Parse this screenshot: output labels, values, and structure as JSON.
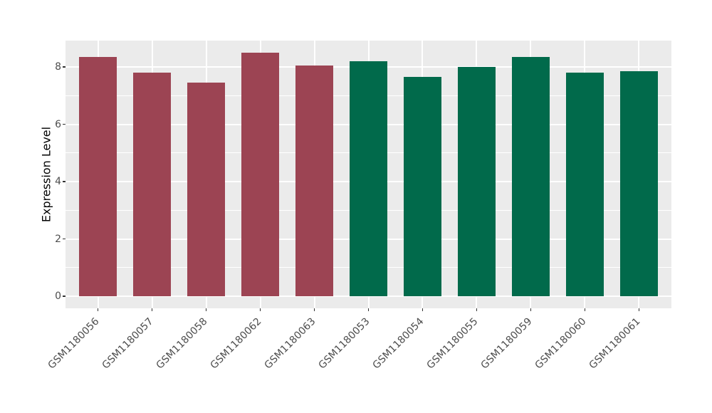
{
  "chart_data": {
    "type": "bar",
    "title": "",
    "xlabel": "",
    "ylabel": "Expression Level",
    "categories": [
      "GSM1180056",
      "GSM1180057",
      "GSM1180058",
      "GSM1180062",
      "GSM1180063",
      "GSM1180053",
      "GSM1180054",
      "GSM1180055",
      "GSM1180059",
      "GSM1180060",
      "GSM1180061"
    ],
    "values": [
      8.35,
      7.8,
      7.45,
      8.5,
      8.05,
      8.2,
      7.65,
      8.0,
      8.35,
      7.8,
      7.85
    ],
    "bar_colors": [
      "#9C4453",
      "#9C4453",
      "#9C4453",
      "#9C4453",
      "#9C4453",
      "#016A4B",
      "#016A4B",
      "#016A4B",
      "#016A4B",
      "#016A4B",
      "#016A4B"
    ],
    "yticks": {
      "values": [
        0,
        2,
        4,
        6,
        8
      ],
      "labels": [
        "0",
        "2",
        "4",
        "6",
        "8"
      ]
    },
    "y_minor_gridlines": [
      1,
      3,
      5,
      7
    ],
    "ylim": [
      -0.42,
      8.92
    ],
    "x_tick_label_rotation_deg": 45,
    "grid": true,
    "legend": false,
    "colors": {
      "figure_background": "#FFFFFF",
      "panel_background": "#EBEBEB",
      "gridline": "#FFFFFF",
      "axis_text": "#4D4D4D",
      "axis_title": "#000000",
      "tick_mark": "#333333"
    }
  }
}
